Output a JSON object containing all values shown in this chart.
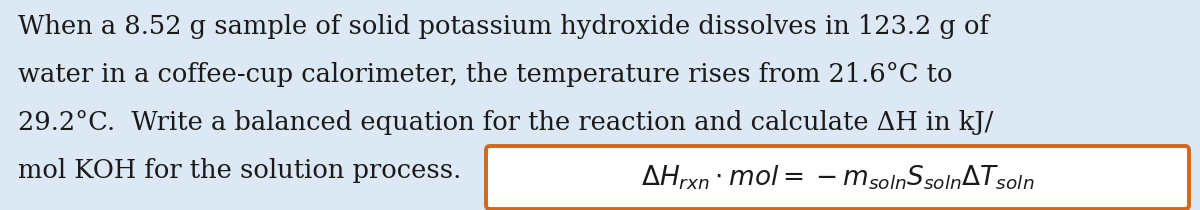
{
  "background_color": "#dce9f5",
  "text_color": "#1a1a1a",
  "main_text_lines": [
    "When a 8.52 g sample of solid potassium hydroxide dissolves in 123.2 g of",
    "water in a coffee-cup calorimeter, the temperature rises from 21.6°C to",
    "29.2°C.  Write a balanced equation for the reaction and calculate ΔH in kJ/",
    "mol KOH for the solution process."
  ],
  "formula": "$\\Delta H_{rxn} \\cdot mol = -m_{soln}S_{soln}\\Delta T_{soln}$",
  "box_edge_color": "#d4671a",
  "box_face_color": "#ffffff",
  "font_size": 18.5,
  "formula_font_size": 19,
  "figwidth": 12.0,
  "figheight": 2.1,
  "dpi": 100
}
